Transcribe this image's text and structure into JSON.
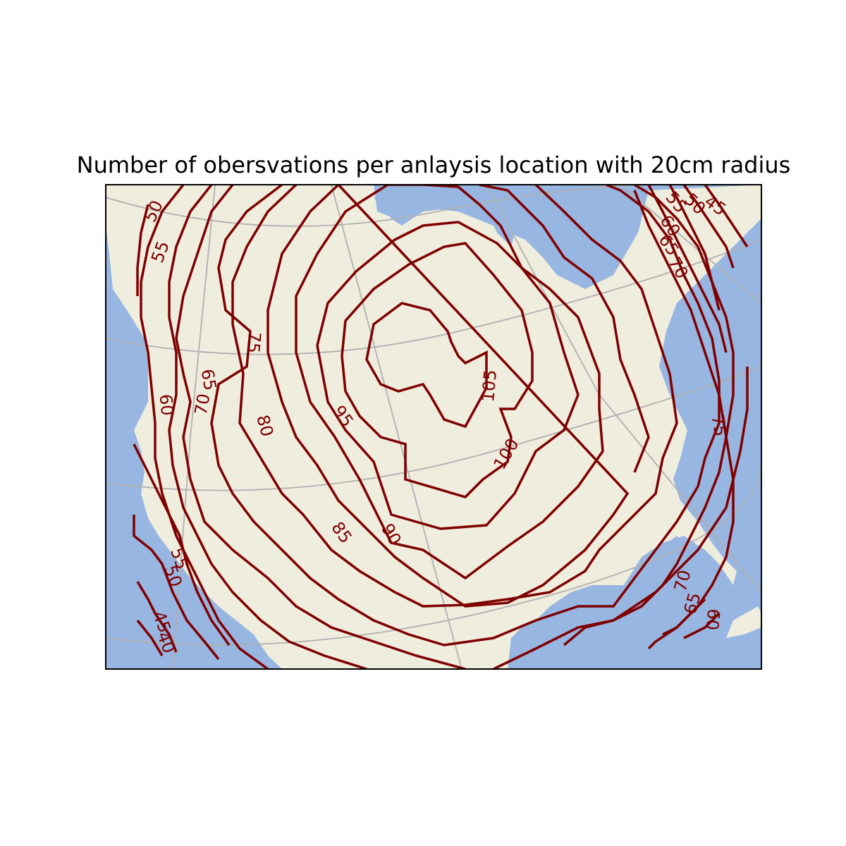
{
  "chart_data": {
    "type": "contour-map",
    "title": "Number of obersvations per anlaysis location with 20cm radius",
    "colors": {
      "land": "#efedde",
      "ocean": "#97b6e1",
      "contour": "#7f0000",
      "gridline": "#b0b0b0"
    },
    "contour_levels": [
      40,
      45,
      50,
      55,
      60,
      65,
      70,
      75,
      80,
      85,
      90,
      95,
      100,
      105
    ],
    "contour_labels": [
      "50",
      "55",
      "60",
      "65",
      "70",
      "75",
      "80",
      "85",
      "90",
      "95",
      "100",
      "105",
      "45",
      "40",
      "50",
      "55",
      "60",
      "65",
      "70",
      "45",
      "50",
      "55",
      "60",
      "65",
      "70",
      "75",
      "70",
      "65",
      "60"
    ]
  }
}
